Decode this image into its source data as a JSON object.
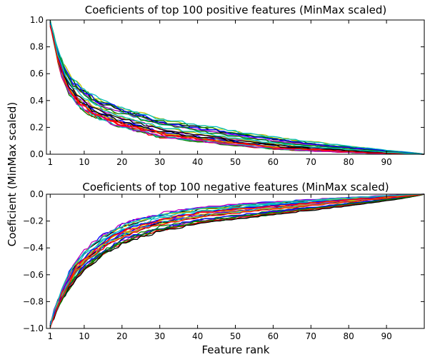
{
  "chart_data": [
    {
      "type": "line",
      "title": "Coeficients of top 100 positive features (MinMax scaled)",
      "ylim": [
        0.0,
        1.0
      ],
      "xlim": [
        0,
        100
      ],
      "xticks": [
        1,
        10,
        20,
        30,
        40,
        50,
        60,
        70,
        80,
        90
      ],
      "yticks": [
        0.0,
        0.2,
        0.4,
        0.6,
        0.8,
        1.0
      ],
      "ytick_labels": [
        "0.0",
        "0.2",
        "0.4",
        "0.6",
        "0.8",
        "1.0"
      ],
      "series_profile": {
        "x": [
          1,
          2,
          3,
          4,
          5,
          6,
          8,
          10,
          12,
          15,
          20,
          25,
          30,
          40,
          50,
          60,
          70,
          80,
          90,
          100
        ],
        "values": [
          1.0,
          0.86,
          0.74,
          0.65,
          0.58,
          0.52,
          0.45,
          0.4,
          0.36,
          0.32,
          0.27,
          0.23,
          0.19,
          0.15,
          0.11,
          0.075,
          0.05,
          0.03,
          0.012,
          0.0
        ]
      },
      "series_count": 25
    },
    {
      "type": "line",
      "title": "Coeficients of top 100 negative features (MinMax scaled)",
      "ylim": [
        -1.0,
        0.0
      ],
      "xlim": [
        0,
        100
      ],
      "xticks": [
        1,
        10,
        20,
        30,
        40,
        50,
        60,
        70,
        80,
        90
      ],
      "yticks": [
        -1.0,
        -0.8,
        -0.6,
        -0.4,
        -0.2,
        0.0
      ],
      "ytick_labels": [
        "−1.0",
        "−0.8",
        "−0.6",
        "−0.4",
        "−0.2",
        "0.0"
      ],
      "series_profile": {
        "x": [
          1,
          2,
          3,
          4,
          5,
          6,
          8,
          10,
          12,
          15,
          20,
          25,
          30,
          40,
          50,
          60,
          70,
          80,
          90,
          100
        ],
        "values": [
          -1.0,
          -0.9,
          -0.82,
          -0.76,
          -0.7,
          -0.65,
          -0.56,
          -0.5,
          -0.45,
          -0.38,
          -0.3,
          -0.25,
          -0.21,
          -0.16,
          -0.13,
          -0.1,
          -0.075,
          -0.05,
          -0.025,
          0.0
        ]
      },
      "series_count": 25
    }
  ],
  "xlabel": "Feature rank",
  "ylabel": "Coeficient (MinMax scaled)",
  "colors": [
    "#0000ff",
    "#008000",
    "#ff0000",
    "#00bfbf",
    "#bf00bf",
    "#bfbf00",
    "#000000"
  ]
}
